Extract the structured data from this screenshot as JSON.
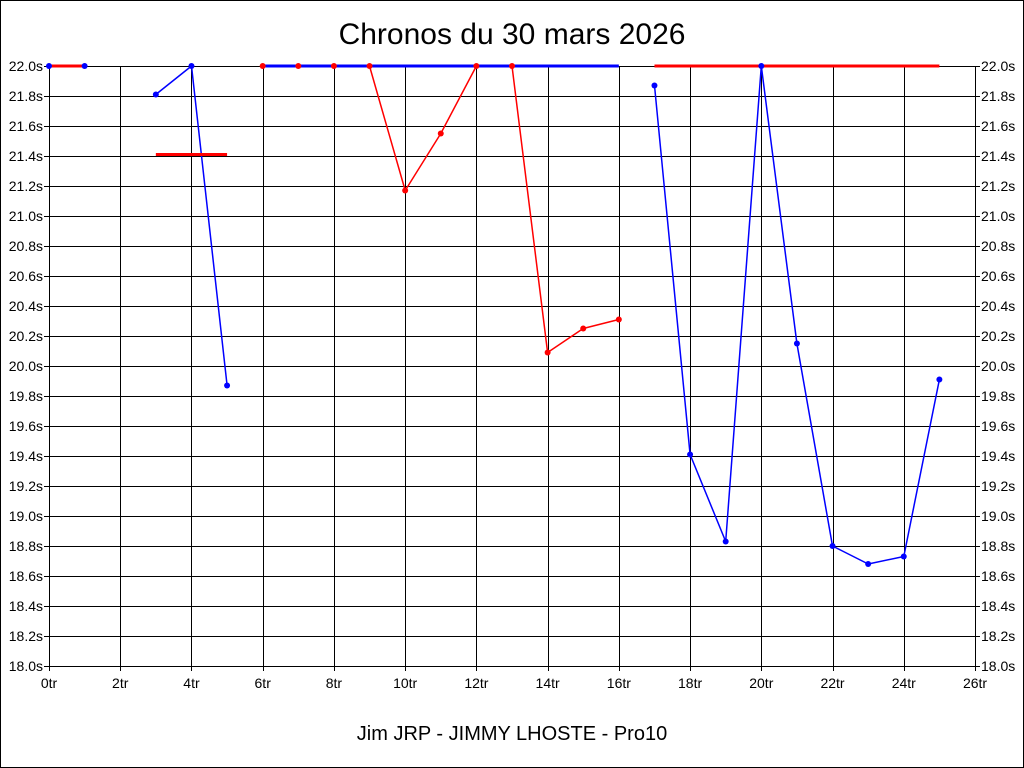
{
  "chart_data": {
    "type": "line",
    "title": "Chronos du 30 mars 2026",
    "caption": "Jim JRP - JIMMY LHOSTE - Pro10",
    "xlim": [
      0,
      26
    ],
    "ylim": [
      18.0,
      22.0
    ],
    "x_ticks": [
      0,
      2,
      4,
      6,
      8,
      10,
      12,
      14,
      16,
      18,
      20,
      22,
      24,
      26
    ],
    "x_tick_labels": [
      "0tr",
      "2tr",
      "4tr",
      "6tr",
      "8tr",
      "10tr",
      "12tr",
      "14tr",
      "16tr",
      "18tr",
      "20tr",
      "22tr",
      "24tr",
      "26tr"
    ],
    "y_ticks": [
      22.0,
      21.8,
      21.6,
      21.4,
      21.2,
      21.0,
      20.8,
      20.6,
      20.4,
      20.2,
      20.0,
      19.8,
      19.6,
      19.4,
      19.2,
      19.0,
      18.8,
      18.6,
      18.4,
      18.2,
      18.0
    ],
    "y_tick_labels": [
      "22.0s",
      "21.8s",
      "21.6s",
      "21.4s",
      "21.2s",
      "21.0s",
      "20.8s",
      "20.6s",
      "20.4s",
      "20.2s",
      "20.0s",
      "19.8s",
      "19.6s",
      "19.4s",
      "19.2s",
      "19.0s",
      "18.8s",
      "18.6s",
      "18.4s",
      "18.2s",
      "18.0s"
    ],
    "y_tick_labels_right": true,
    "grid": true,
    "legend": false,
    "series": [
      {
        "color": "#0000ff",
        "x": [
          0,
          1
        ],
        "y": [
          22.0,
          22.0
        ]
      },
      {
        "color": "#0000ff",
        "x": [
          3,
          4,
          5
        ],
        "y": [
          21.81,
          22.0,
          19.87
        ]
      },
      {
        "color": "#ff0000",
        "x": [
          6,
          7,
          8,
          9,
          10,
          11,
          12,
          13,
          14,
          15,
          16
        ],
        "y": [
          22.0,
          22.0,
          22.0,
          22.0,
          21.17,
          21.55,
          22.0,
          22.0,
          20.09,
          20.25,
          20.31
        ]
      },
      {
        "color": "#0000ff",
        "x": [
          17,
          18,
          19,
          20,
          21,
          22,
          23,
          24,
          25
        ],
        "y": [
          21.87,
          19.41,
          18.83,
          22.0,
          20.15,
          18.8,
          18.68,
          18.73,
          19.91
        ]
      }
    ],
    "reference_lines": [
      {
        "color": "#ff0000",
        "x": [
          0,
          1
        ],
        "y": 22.0
      },
      {
        "color": "#ff0000",
        "x": [
          3,
          5
        ],
        "y": 21.41
      },
      {
        "color": "#0000ff",
        "x": [
          6,
          16
        ],
        "y": 22.0
      },
      {
        "color": "#ff0000",
        "x": [
          17,
          25
        ],
        "y": 22.0
      }
    ]
  }
}
